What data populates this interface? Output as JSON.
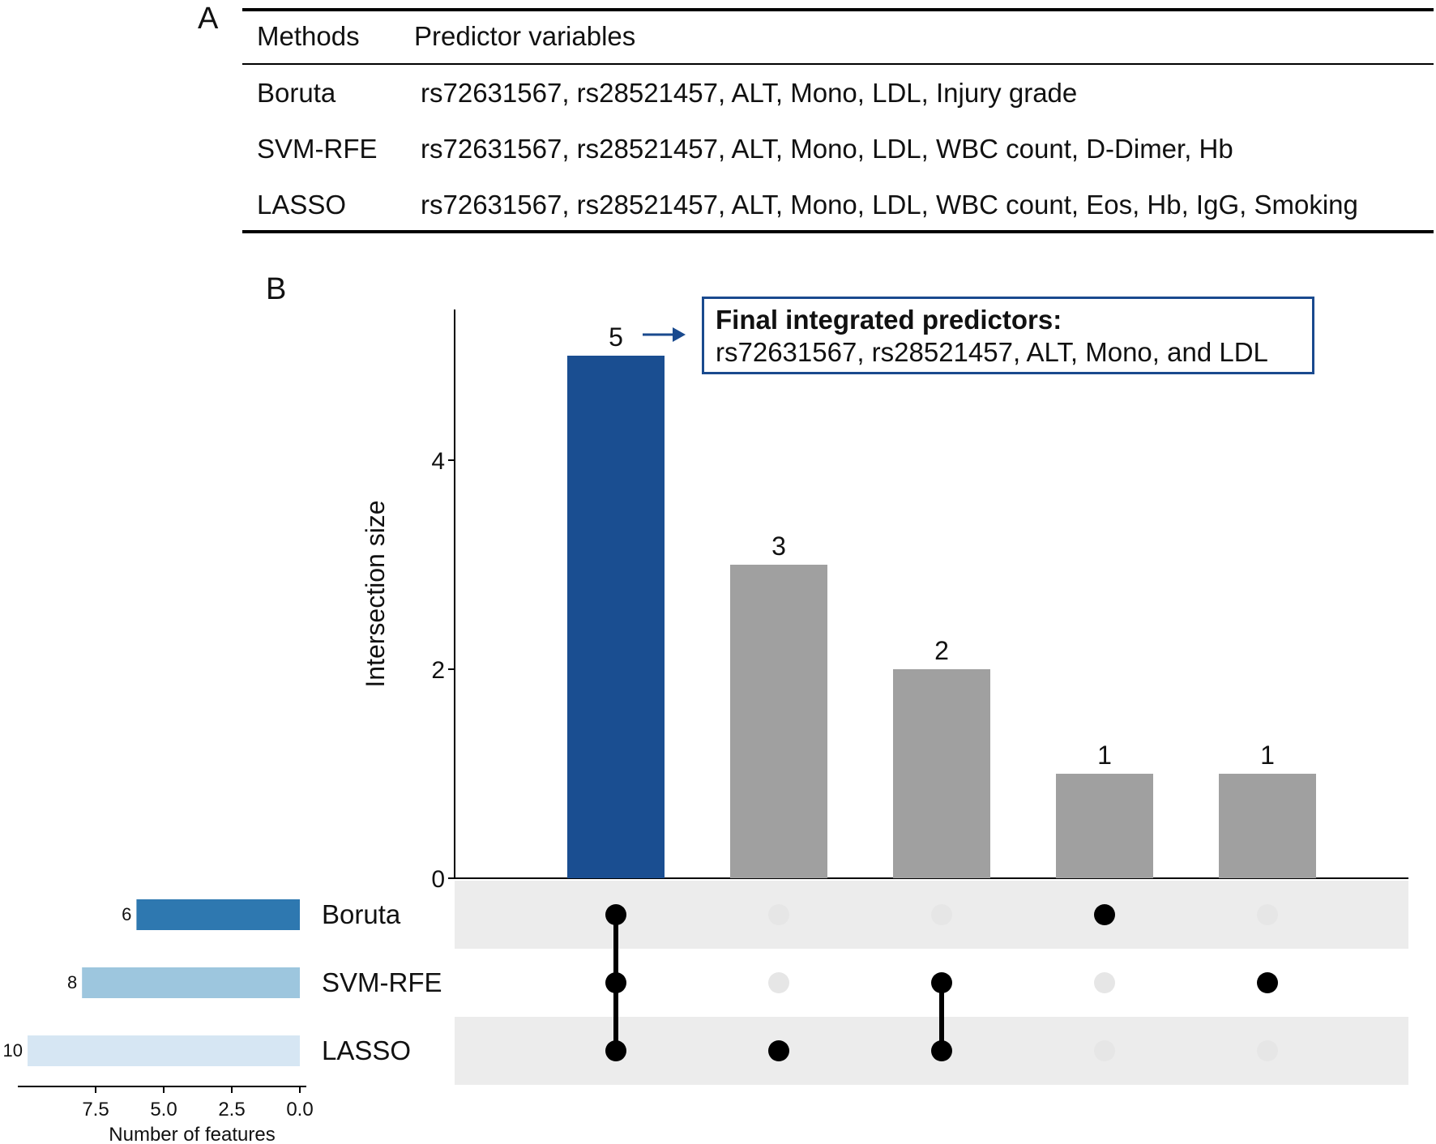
{
  "panel_a": {
    "letter": "A",
    "columns": [
      "Methods",
      "Predictor variables"
    ],
    "rows": [
      {
        "method": "Boruta",
        "predictors": "rs72631567, rs28521457, ALT, Mono, LDL, Injury grade"
      },
      {
        "method": "SVM-RFE",
        "predictors": "rs72631567, rs28521457, ALT, Mono, LDL, WBC count, D-Dimer, Hb"
      },
      {
        "method": "LASSO",
        "predictors": "rs72631567, rs28521457, ALT, Mono, LDL, WBC count, Eos, Hb, IgG, Smoking"
      }
    ]
  },
  "panel_b": {
    "letter": "B",
    "annotation": {
      "title": "Final integrated predictors:",
      "text": "rs72631567, rs28521457, ALT, Mono, and LDL"
    }
  },
  "chart_data": {
    "type": "bar",
    "subtype": "upset",
    "sets": [
      "Boruta",
      "SVM-RFE",
      "LASSO"
    ],
    "set_sizes": [
      6,
      8,
      10
    ],
    "set_colors": [
      "#2e78b0",
      "#9dc6de",
      "#d6e6f3"
    ],
    "set_size_axis": {
      "xlabel": "Number of features",
      "ticks": [
        "7.5",
        "5.0",
        "2.5",
        "0.0"
      ],
      "reversed": true
    },
    "intersections": [
      {
        "sets": [
          "Boruta",
          "SVM-RFE",
          "LASSO"
        ],
        "size": 5,
        "highlight": true
      },
      {
        "sets": [
          "LASSO"
        ],
        "size": 3
      },
      {
        "sets": [
          "SVM-RFE",
          "LASSO"
        ],
        "size": 2
      },
      {
        "sets": [
          "Boruta"
        ],
        "size": 1
      },
      {
        "sets": [
          "SVM-RFE"
        ],
        "size": 1
      }
    ],
    "ylabel": "Intersection size",
    "y_ticks": [
      0,
      2,
      4
    ],
    "ylim": [
      0,
      5.5
    ],
    "colors": {
      "highlight": "#1a4e91",
      "default": "#a0a0a0",
      "dot_on": "#000000",
      "dot_off": "#e6e6e6",
      "band": "#ececec"
    }
  }
}
